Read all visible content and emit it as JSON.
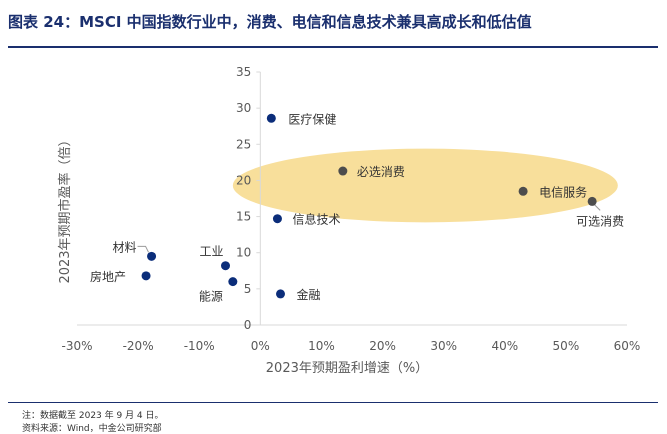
{
  "header": {
    "title": "图表 24：MSCI 中国指数行业中，消费、电信和信息技术兼具高成长和低估值"
  },
  "footer": {
    "note": "注：数据截至 2023 年 9 月 4 日。",
    "source": "资料来源：Wind，中金公司研究部"
  },
  "colors": {
    "title": "#1a2f6e",
    "point_blue": "#0b2d7a",
    "point_gray": "#4d4d4d",
    "highlight": "#f8df9b",
    "axis": "#d9d9d9",
    "text": "#595959"
  },
  "chart_data": {
    "type": "scatter",
    "xlabel": "2023年预期盈利增速（%）",
    "ylabel": "2023年预期市盈率（倍）",
    "xlim": [
      -30,
      60
    ],
    "ylim": [
      0,
      35
    ],
    "xticks": [
      -30,
      -20,
      -10,
      0,
      10,
      20,
      30,
      40,
      50,
      60
    ],
    "yticks": [
      0,
      5,
      10,
      15,
      20,
      25,
      30,
      35
    ],
    "xtick_labels": [
      "-30%",
      "-20%",
      "-10%",
      "0%",
      "10%",
      "20%",
      "30%",
      "40%",
      "50%",
      "60%"
    ],
    "ytick_labels": [
      "0",
      "5",
      "10",
      "15",
      "20",
      "25",
      "30",
      "35"
    ],
    "grid": false,
    "highlight_region": {
      "shape": "ellipse",
      "center_x": 27,
      "center_y": 19.3,
      "radius_x": 31.5,
      "radius_y": 5.1
    },
    "points": [
      {
        "name": "医疗保健",
        "x": 1.8,
        "y": 28.6,
        "color": "blue"
      },
      {
        "name": "必选消费",
        "x": 13.5,
        "y": 21.3,
        "color": "gray"
      },
      {
        "name": "电信服务",
        "x": 43.0,
        "y": 18.5,
        "color": "gray"
      },
      {
        "name": "可选消费",
        "x": 54.3,
        "y": 17.1,
        "color": "gray"
      },
      {
        "name": "信息技术",
        "x": 2.8,
        "y": 14.7,
        "color": "blue"
      },
      {
        "name": "材料",
        "x": -17.8,
        "y": 9.5,
        "color": "blue"
      },
      {
        "name": "房地产",
        "x": -18.7,
        "y": 6.8,
        "color": "blue"
      },
      {
        "name": "工业",
        "x": -5.7,
        "y": 8.2,
        "color": "blue"
      },
      {
        "name": "能源",
        "x": -4.5,
        "y": 6.0,
        "color": "blue"
      },
      {
        "name": "金融",
        "x": 3.3,
        "y": 4.3,
        "color": "blue"
      }
    ]
  }
}
